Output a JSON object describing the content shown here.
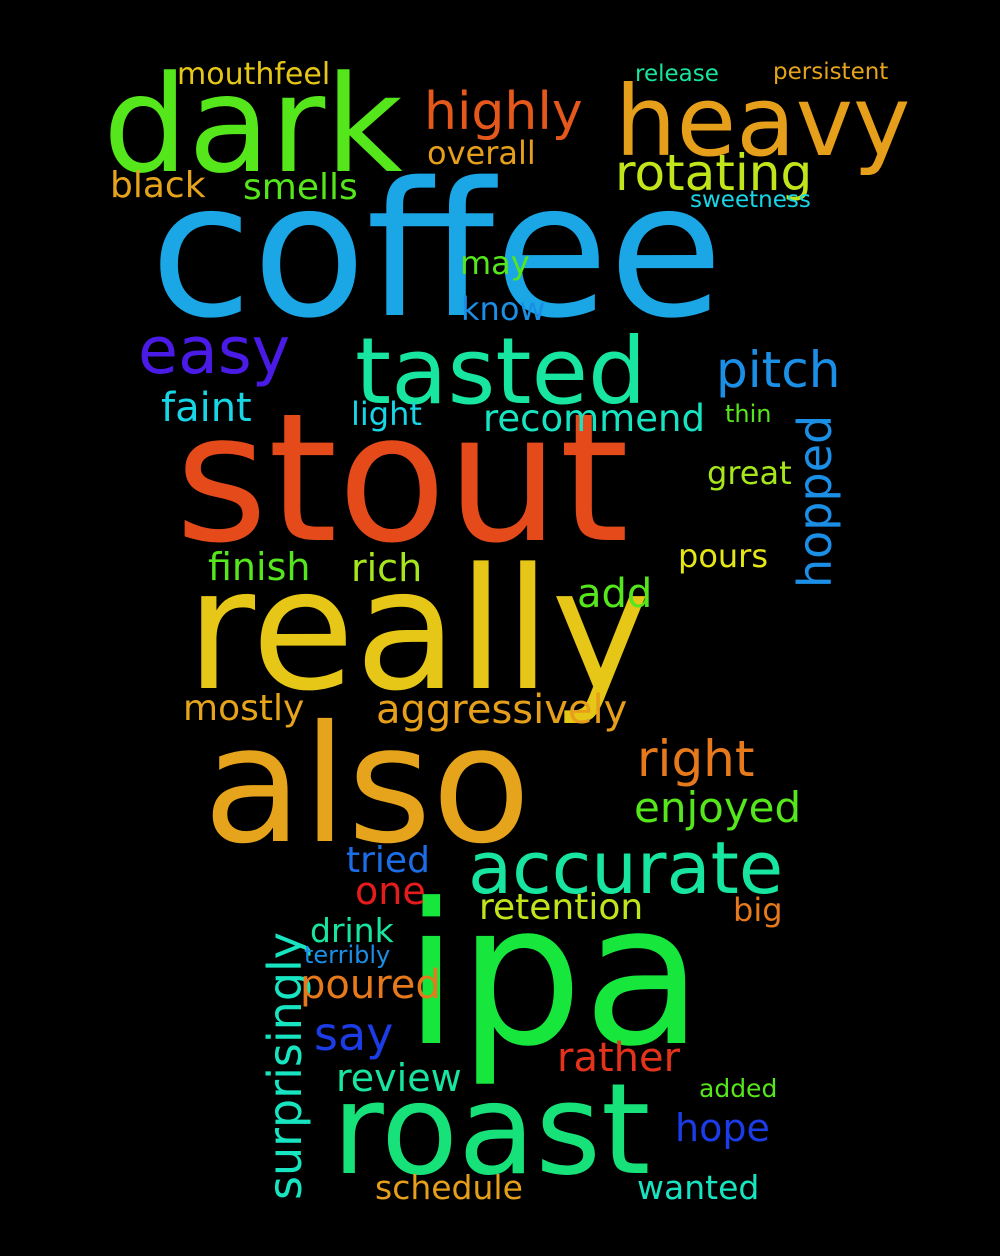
{
  "words": {
    "coffee": {
      "text": "coffee",
      "color": "#1ba6e6"
    },
    "stout": {
      "text": "stout",
      "color": "#e54a1b"
    },
    "really": {
      "text": "really",
      "color": "#e6c617"
    },
    "also": {
      "text": "also",
      "color": "#e5a41b"
    },
    "ipa": {
      "text": "ipa",
      "color": "#17e63c"
    },
    "dark": {
      "text": "dark",
      "color": "#55e61b"
    },
    "heavy": {
      "text": "heavy",
      "color": "#e69f1b"
    },
    "roast": {
      "text": "roast",
      "color": "#17e27a"
    },
    "tasted": {
      "text": "tasted",
      "color": "#17e5a0"
    },
    "accurate": {
      "text": "accurate",
      "color": "#17e5a0"
    },
    "easy": {
      "text": "easy",
      "color": "#4a1be6"
    },
    "highly": {
      "text": "highly",
      "color": "#e5581b"
    },
    "rotating": {
      "text": "rotating",
      "color": "#c0e61b"
    },
    "pitch": {
      "text": "pitch",
      "color": "#1b8ee6"
    },
    "mouthfeel": {
      "text": "mouthfeel",
      "color": "#e6c617"
    },
    "black": {
      "text": "black",
      "color": "#e5a41b"
    },
    "smells": {
      "text": "smells",
      "color": "#55e61b"
    },
    "overall": {
      "text": "overall",
      "color": "#e69f1b"
    },
    "release": {
      "text": "release",
      "color": "#17e59b"
    },
    "persistent": {
      "text": "persistent",
      "color": "#e5a41b"
    },
    "sweetness": {
      "text": "sweetness",
      "color": "#17d6e6"
    },
    "may": {
      "text": "may",
      "color": "#55e61b"
    },
    "know": {
      "text": "know",
      "color": "#1b8ee6"
    },
    "faint": {
      "text": "faint",
      "color": "#17d6e6"
    },
    "light": {
      "text": "light",
      "color": "#17d6e6"
    },
    "recommend": {
      "text": "recommend",
      "color": "#17e5c2"
    },
    "thin": {
      "text": "thin",
      "color": "#55e61b"
    },
    "hopped": {
      "text": "hopped",
      "color": "#1b8ee6"
    },
    "great": {
      "text": "great",
      "color": "#a6e61b"
    },
    "finish": {
      "text": "finish",
      "color": "#55e61b"
    },
    "rich": {
      "text": "rich",
      "color": "#a6e61b"
    },
    "pours": {
      "text": "pours",
      "color": "#e6e617"
    },
    "add": {
      "text": "add",
      "color": "#55e61b"
    },
    "mostly": {
      "text": "mostly",
      "color": "#e5a41b"
    },
    "aggressively": {
      "text": "aggressively",
      "color": "#e69f1b"
    },
    "right": {
      "text": "right",
      "color": "#e5791b"
    },
    "enjoyed": {
      "text": "enjoyed",
      "color": "#55e61b"
    },
    "surprisingly": {
      "text": "surprisingly",
      "color": "#17e5c2"
    },
    "tried": {
      "text": "tried",
      "color": "#1b6ee6"
    },
    "one": {
      "text": "one",
      "color": "#e61b1b"
    },
    "retention": {
      "text": "retention",
      "color": "#c0e61b"
    },
    "big": {
      "text": "big",
      "color": "#e5791b"
    },
    "drink": {
      "text": "drink",
      "color": "#17e5a0"
    },
    "terribly": {
      "text": "terribly",
      "color": "#1b8ee6"
    },
    "poured": {
      "text": "poured",
      "color": "#e5791b"
    },
    "say": {
      "text": "say",
      "color": "#1b3ce6"
    },
    "rather": {
      "text": "rather",
      "color": "#e5331b"
    },
    "review": {
      "text": "review",
      "color": "#17e5a0"
    },
    "added": {
      "text": "added",
      "color": "#55e61b"
    },
    "hope": {
      "text": "hope",
      "color": "#1b3ce6"
    },
    "schedule": {
      "text": "schedule",
      "color": "#e69f1b"
    },
    "wanted": {
      "text": "wanted",
      "color": "#17e5c2"
    }
  }
}
